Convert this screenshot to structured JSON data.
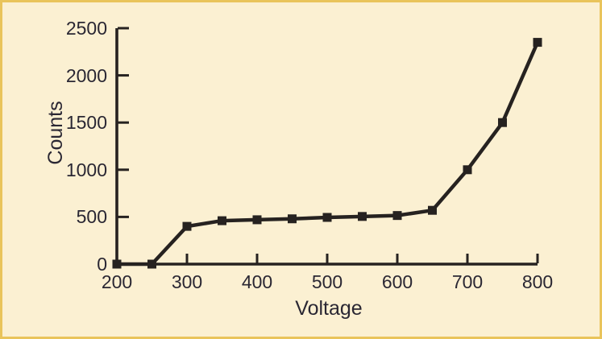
{
  "figure": {
    "background_color": "#fbf0d2",
    "border_color": "#e9c45b",
    "line_color": "#262220",
    "text_color": "#2a2733"
  },
  "chart_data": {
    "type": "line",
    "title": "",
    "xlabel": "Voltage",
    "ylabel": "Counts",
    "x": [
      200,
      250,
      300,
      350,
      400,
      450,
      500,
      550,
      600,
      650,
      700,
      750,
      800
    ],
    "y": [
      0,
      0,
      400,
      460,
      470,
      480,
      495,
      505,
      515,
      570,
      1000,
      1500,
      2350
    ],
    "xlim": [
      200,
      800
    ],
    "ylim": [
      0,
      2500
    ],
    "x_ticks": [
      200,
      300,
      400,
      500,
      600,
      700,
      800
    ],
    "y_ticks": [
      0,
      500,
      1000,
      1500,
      2000,
      2500
    ],
    "marker": "square",
    "marker_color": "#262220",
    "line_width": 4.5,
    "grid": false,
    "legend": null
  }
}
